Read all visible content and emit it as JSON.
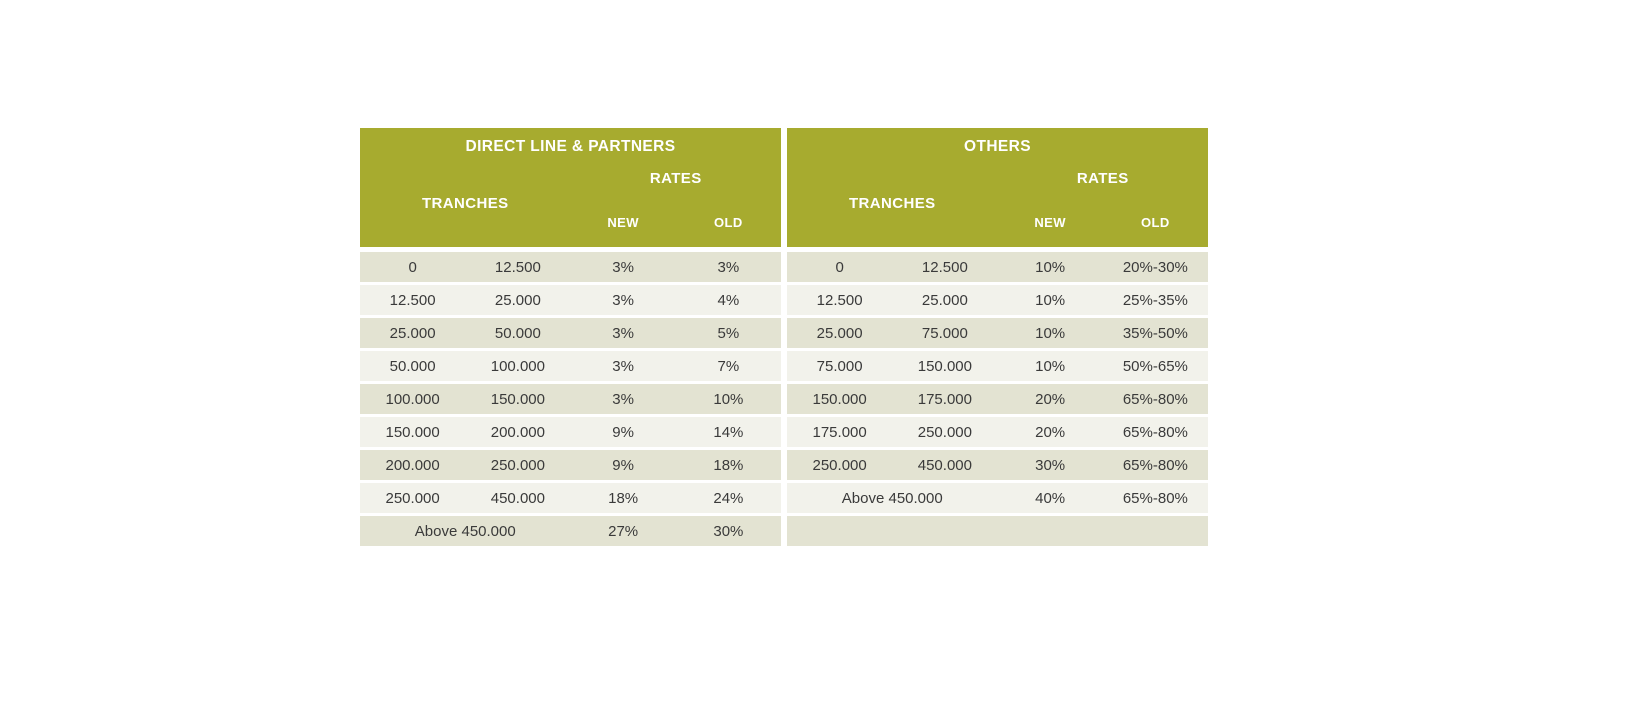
{
  "page": {
    "background": "#ffffff"
  },
  "colors": {
    "header_bg": "#A7AB2F",
    "header_text": "#FFFFFF",
    "row_dark": "#E3E3D2",
    "row_light": "#F2F2EB",
    "body_text": "#3A3A3A"
  },
  "tables": [
    {
      "title": "DIRECT LINE & PARTNERS",
      "columns": {
        "tranches": "TRANCHES",
        "rates": "RATES",
        "new": "NEW",
        "old": "OLD"
      },
      "rows": [
        {
          "cells": [
            "0",
            "12.500",
            "3%",
            "3%"
          ]
        },
        {
          "cells": [
            "12.500",
            "25.000",
            "3%",
            "4%"
          ]
        },
        {
          "cells": [
            "25.000",
            "50.000",
            "3%",
            "5%"
          ]
        },
        {
          "cells": [
            "50.000",
            "100.000",
            "3%",
            "7%"
          ]
        },
        {
          "cells": [
            "100.000",
            "150.000",
            "3%",
            "10%"
          ]
        },
        {
          "cells": [
            "150.000",
            "200.000",
            "9%",
            "14%"
          ]
        },
        {
          "cells": [
            "200.000",
            "250.000",
            "9%",
            "18%"
          ]
        },
        {
          "cells": [
            "250.000",
            "450.000",
            "18%",
            "24%"
          ]
        },
        {
          "span2": "Above 450.000",
          "cells": [
            "27%",
            "30%"
          ]
        }
      ]
    },
    {
      "title": "OTHERS",
      "columns": {
        "tranches": "TRANCHES",
        "rates": "RATES",
        "new": "NEW",
        "old": "OLD"
      },
      "rows": [
        {
          "cells": [
            "0",
            "12.500",
            "10%",
            "20%-30%"
          ]
        },
        {
          "cells": [
            "12.500",
            "25.000",
            "10%",
            "25%-35%"
          ]
        },
        {
          "cells": [
            "25.000",
            "75.000",
            "10%",
            "35%-50%"
          ]
        },
        {
          "cells": [
            "75.000",
            "150.000",
            "10%",
            "50%-65%"
          ]
        },
        {
          "cells": [
            "150.000",
            "175.000",
            "20%",
            "65%-80%"
          ]
        },
        {
          "cells": [
            "175.000",
            "250.000",
            "20%",
            "65%-80%"
          ]
        },
        {
          "cells": [
            "250.000",
            "450.000",
            "30%",
            "65%-80%"
          ]
        },
        {
          "span2": "Above 450.000",
          "cells": [
            "40%",
            "65%-80%"
          ]
        },
        {
          "empty": true
        }
      ]
    }
  ]
}
